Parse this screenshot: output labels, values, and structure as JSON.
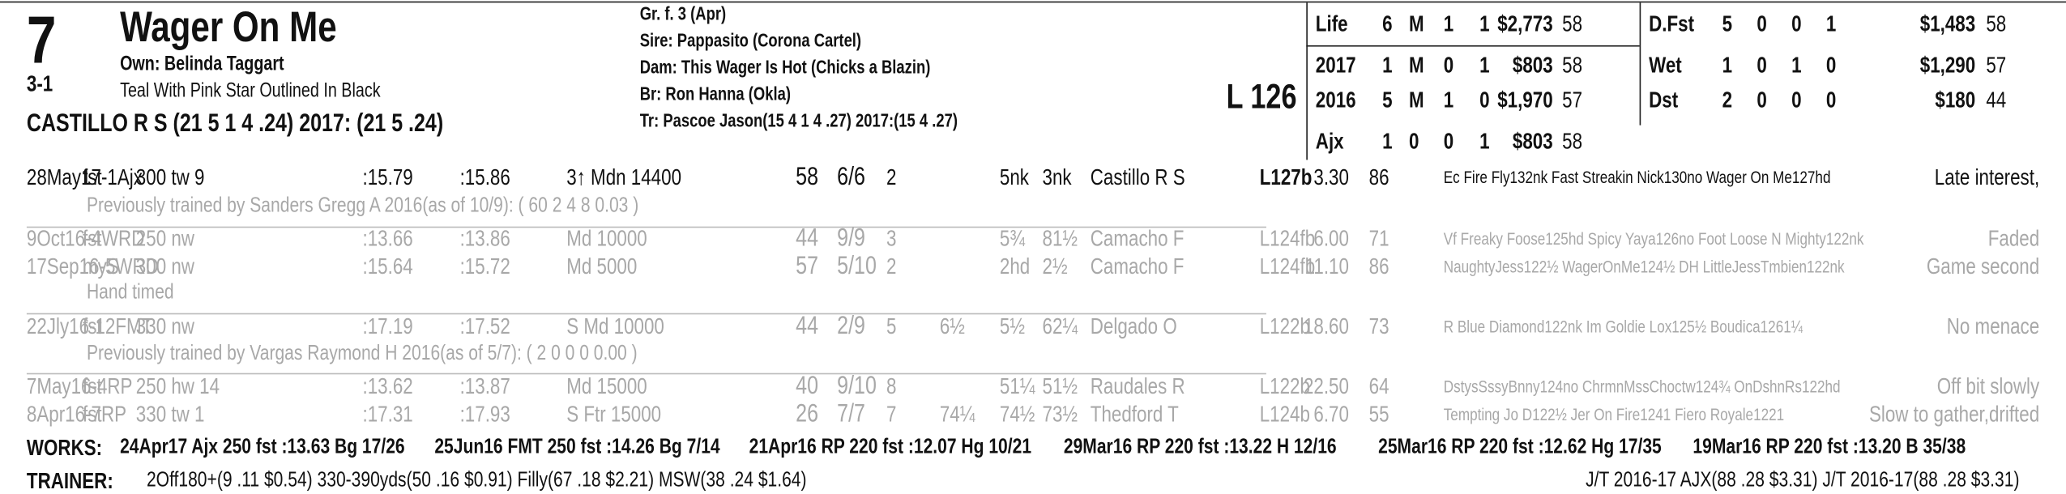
{
  "header": {
    "post": "7",
    "odds": "3-1",
    "horse": "Wager On Me",
    "owner": "Own: Belinda Taggart",
    "silks": "Teal With Pink Star Outlined In Black",
    "jockey": "CASTILLO R S (21 5 1 4 .24) 2017: (21 5 .24)",
    "sex_age": "Gr. f. 3 (Apr)",
    "sire": "Sire: Pappasito (Corona Cartel)",
    "dam": "Dam: This Wager Is Hot (Chicks a Blazin)",
    "breeder": "Br:   Ron Hanna (Okla)",
    "trainer": "Tr:   Pascoe Jason(15 4 1 4 .27)  2017:(15 4 .27)",
    "weight": "L 126"
  },
  "stats_left": [
    [
      "Life",
      "6",
      "M",
      "1",
      "1",
      "$2,773",
      "58"
    ],
    [
      "2017",
      "1",
      "M",
      "0",
      "1",
      "$803",
      "58"
    ],
    [
      "2016",
      "5",
      "M",
      "1",
      "0",
      "$1,970",
      "57"
    ],
    [
      "Ajx",
      "1",
      "0",
      "0",
      "1",
      "$803",
      "58"
    ]
  ],
  "stats_right": [
    [
      "D.Fst",
      "5",
      "0",
      "0",
      "1",
      "$1,483",
      "58"
    ],
    [
      "Wet",
      "1",
      "0",
      "1",
      "0",
      "$1,290",
      "57"
    ],
    [
      "Dst",
      "2",
      "0",
      "0",
      "0",
      "$180",
      "44"
    ]
  ],
  "rows": [
    {
      "cells": [
        "28May17-1Ajx",
        "fst",
        "300 tw 9",
        ":15.79",
        ":15.86",
        "3↑ Mdn 14400",
        "58",
        "6/6",
        "2",
        "",
        "5nk",
        "3nk",
        "Castillo R S",
        "L127b",
        "3.30",
        "86",
        "Ec Fire Fly132nk Fast Streakin Nick130no Wager On Me127hd",
        "Late interest,"
      ]
    },
    {
      "note": "Previously trained by Sanders Gregg A 2016(as of 10/9): ( 60 2 4 8 0.03 )"
    },
    {
      "cells": [
        "9Oct16-4WRD",
        "fst",
        "250 nw",
        ":13.66",
        ":13.86",
        "Md 10000",
        "44",
        "9/9",
        "3",
        "",
        "5¾",
        "81½",
        "Camacho F",
        "L124fb",
        "6.00",
        "71",
        "Vf Freaky Foose125hd Spicy Yaya126no Foot Loose N Mighty122nk",
        "Faded"
      ]
    },
    {
      "cells": [
        "17Sep16-5WRD",
        "myS",
        "300 nw",
        ":15.64",
        ":15.72",
        "Md 5000",
        "57",
        "5/10",
        "2",
        "",
        "2hd",
        "2½",
        "Camacho F",
        "L124fb",
        "11.10",
        "86",
        "NaughtyJess122½ WagerOnMe124½ DH LittleJessTmbien122nk",
        "Game second"
      ]
    },
    {
      "note": "Hand timed"
    },
    {
      "cells": [
        "22Jly16-12FMT",
        "fst",
        "330 nw",
        ":17.19",
        ":17.52",
        "S Md 10000",
        "44",
        "2/9",
        "5",
        "6½",
        "5½",
        "62¼",
        "Delgado O",
        "L122b",
        "18.60",
        "73",
        "R Blue Diamond122nk Im Goldie Lox125½ Boudica1261¼",
        "No menace"
      ]
    },
    {
      "note": "Previously trained by Vargas Raymond H 2016(as of 5/7): ( 2 0 0 0 0.00 )"
    },
    {
      "cells": [
        "7May16-4RP",
        "fst",
        "250 hw 14",
        ":13.62",
        ":13.87",
        "Md 15000",
        "40",
        "9/10",
        "8",
        "",
        "51¼",
        "51½",
        "Raudales R",
        "L122b",
        "22.50",
        "64",
        "DstysSssyBnny124no ChrmnMssChoctw124¾ OnDshnRs122hd",
        "Off bit slowly"
      ]
    },
    {
      "cells": [
        "8Apr16-7RP",
        "fst",
        "330 tw 1",
        ":17.31",
        ":17.93",
        "S Ftr 15000",
        "26",
        "7/7",
        "7",
        "74¼",
        "74½",
        "73½",
        "Thedford T",
        "L124b",
        "6.70",
        "55",
        "Tempting Jo D122½ Jer On Fire1241 Fiero Royale1221",
        "Slow to gather,drifted"
      ]
    }
  ],
  "works": {
    "label": "WORKS:",
    "items": [
      "24Apr17 Ajx 250 fst :13.63 Bg 17/26",
      "25Jun16 FMT 250 fst :14.26 Bg 7/14",
      "21Apr16 RP 220 fst :12.07 Hg 10/21",
      "29Mar16 RP 220 fst :13.22 H 12/16",
      "25Mar16 RP 220 fst :12.62 Hg 17/35",
      "19Mar16 RP 220 fst :13.20 B 35/38"
    ]
  },
  "trainer": {
    "label": "TRAINER:",
    "text": "2Off180+(9 .11 $0.54) 330-390yds(50 .16 $0.91) Filly(67 .18 $2.21) MSW(38 .24 $1.64)",
    "jt": "J/T 2016-17 AJX(88 .28 $3.31)  J/T 2016-17(88 .28 $3.31)"
  }
}
